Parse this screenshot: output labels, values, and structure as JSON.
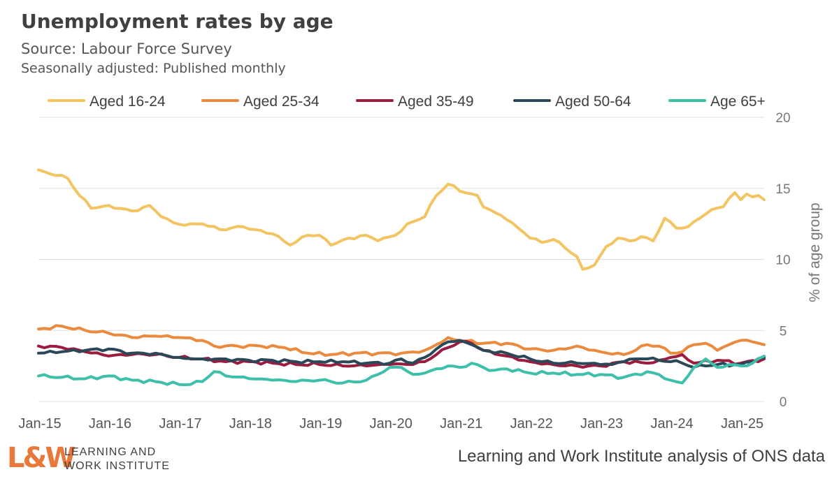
{
  "header": {
    "title": "Unemployment rates by age",
    "subtitle": "Source: Labour Force Survey",
    "subtitle2": "Seasonally adjusted: Published monthly"
  },
  "footer": {
    "logo_mark": "L&W",
    "logo_line1": "LEARNING AND",
    "logo_line2": "WORK INSTITUTE",
    "source_note": "Learning and Work Institute analysis of ONS data"
  },
  "colors": {
    "aged_16_24": "#f2c462",
    "aged_25_34": "#ea8a3e",
    "aged_35_49": "#9b1c3f",
    "aged_50_64": "#2a4858",
    "age_65_plus": "#3dbfaa",
    "gridline": "#dddddd",
    "axis_text": "#555555"
  },
  "chart_data": {
    "type": "line",
    "title": "Unemployment rates by age",
    "xlabel": "",
    "ylabel": "% of age group",
    "ylim": [
      0,
      20
    ],
    "yticks": [
      "0",
      "5",
      "10",
      "15",
      "20"
    ],
    "yaxis_position": "right",
    "grid": true,
    "legend_position": "top",
    "x_tick_labels": [
      "Jan-15",
      "Jan-16",
      "Jan-17",
      "Jan-18",
      "Jan-19",
      "Jan-20",
      "Jan-21",
      "Jan-22",
      "Jan-23",
      "Jan-24",
      "Jan-25"
    ],
    "x_start": "Jan-15",
    "frequency": "monthly",
    "n_points": 125,
    "series": [
      {
        "name": "Aged 16-24",
        "key": "aged_16_24",
        "anchors": [
          [
            0,
            16.3
          ],
          [
            3,
            15.9
          ],
          [
            5,
            15.7
          ],
          [
            7,
            14.5
          ],
          [
            9,
            13.6
          ],
          [
            12,
            13.8
          ],
          [
            16,
            13.4
          ],
          [
            19,
            13.8
          ],
          [
            21,
            13.0
          ],
          [
            23,
            12.6
          ],
          [
            25,
            12.4
          ],
          [
            28,
            12.5
          ],
          [
            31,
            12.1
          ],
          [
            35,
            12.3
          ],
          [
            37,
            12.1
          ],
          [
            40,
            11.8
          ],
          [
            43,
            11.0
          ],
          [
            46,
            11.7
          ],
          [
            48,
            11.7
          ],
          [
            50,
            11.0
          ],
          [
            53,
            11.5
          ],
          [
            56,
            11.7
          ],
          [
            58,
            11.3
          ],
          [
            61,
            11.7
          ],
          [
            63,
            12.5
          ],
          [
            66,
            13.0
          ],
          [
            68,
            14.5
          ],
          [
            70,
            15.3
          ],
          [
            72,
            14.8
          ],
          [
            75,
            14.5
          ],
          [
            76,
            13.7
          ],
          [
            78,
            13.3
          ],
          [
            80,
            12.8
          ],
          [
            82,
            12.2
          ],
          [
            84,
            11.5
          ],
          [
            86,
            11.2
          ],
          [
            88,
            11.4
          ],
          [
            90,
            10.8
          ],
          [
            92,
            10.2
          ],
          [
            93,
            9.3
          ],
          [
            95,
            9.6
          ],
          [
            97,
            10.9
          ],
          [
            99,
            11.5
          ],
          [
            101,
            11.3
          ],
          [
            103,
            11.6
          ],
          [
            105,
            11.3
          ],
          [
            107,
            12.9
          ],
          [
            109,
            12.2
          ],
          [
            111,
            12.3
          ],
          [
            113,
            12.9
          ],
          [
            115,
            13.5
          ],
          [
            117,
            13.7
          ],
          [
            118,
            14.3
          ],
          [
            119,
            14.7
          ],
          [
            120,
            14.2
          ],
          [
            121,
            14.6
          ],
          [
            122,
            14.4
          ],
          [
            123,
            14.5
          ],
          [
            124,
            14.2
          ]
        ]
      },
      {
        "name": "Aged 25-34",
        "key": "aged_25_34",
        "anchors": [
          [
            0,
            5.1
          ],
          [
            4,
            5.3
          ],
          [
            8,
            5.0
          ],
          [
            12,
            4.8
          ],
          [
            16,
            4.5
          ],
          [
            20,
            4.6
          ],
          [
            24,
            4.5
          ],
          [
            28,
            4.3
          ],
          [
            30,
            3.9
          ],
          [
            34,
            3.9
          ],
          [
            38,
            3.9
          ],
          [
            42,
            3.8
          ],
          [
            46,
            3.4
          ],
          [
            50,
            3.3
          ],
          [
            54,
            3.4
          ],
          [
            58,
            3.4
          ],
          [
            62,
            3.4
          ],
          [
            66,
            3.6
          ],
          [
            68,
            4.0
          ],
          [
            70,
            4.5
          ],
          [
            72,
            4.3
          ],
          [
            76,
            4.1
          ],
          [
            80,
            4.1
          ],
          [
            84,
            3.7
          ],
          [
            88,
            3.6
          ],
          [
            92,
            3.9
          ],
          [
            96,
            3.5
          ],
          [
            100,
            3.3
          ],
          [
            104,
            4.0
          ],
          [
            106,
            3.9
          ],
          [
            108,
            3.4
          ],
          [
            110,
            3.5
          ],
          [
            112,
            4.0
          ],
          [
            114,
            4.1
          ],
          [
            116,
            3.6
          ],
          [
            118,
            4.0
          ],
          [
            120,
            4.3
          ],
          [
            122,
            4.2
          ],
          [
            124,
            4.0
          ]
        ]
      },
      {
        "name": "Aged 35-49",
        "key": "aged_35_49",
        "anchors": [
          [
            0,
            3.9
          ],
          [
            4,
            3.8
          ],
          [
            8,
            3.5
          ],
          [
            12,
            3.2
          ],
          [
            16,
            3.3
          ],
          [
            20,
            3.3
          ],
          [
            24,
            3.1
          ],
          [
            28,
            3.0
          ],
          [
            32,
            2.8
          ],
          [
            36,
            2.8
          ],
          [
            40,
            2.7
          ],
          [
            44,
            2.6
          ],
          [
            48,
            2.6
          ],
          [
            52,
            2.5
          ],
          [
            56,
            2.5
          ],
          [
            60,
            2.6
          ],
          [
            64,
            2.6
          ],
          [
            66,
            2.8
          ],
          [
            68,
            3.3
          ],
          [
            70,
            3.8
          ],
          [
            72,
            4.2
          ],
          [
            74,
            4.1
          ],
          [
            76,
            3.6
          ],
          [
            80,
            3.2
          ],
          [
            84,
            2.8
          ],
          [
            88,
            2.6
          ],
          [
            92,
            2.5
          ],
          [
            96,
            2.5
          ],
          [
            100,
            2.8
          ],
          [
            104,
            2.7
          ],
          [
            106,
            2.9
          ],
          [
            108,
            3.1
          ],
          [
            110,
            3.3
          ],
          [
            112,
            2.7
          ],
          [
            116,
            2.9
          ],
          [
            120,
            2.7
          ],
          [
            124,
            3.0
          ]
        ]
      },
      {
        "name": "Aged 50-64",
        "key": "aged_50_64",
        "anchors": [
          [
            0,
            3.4
          ],
          [
            4,
            3.5
          ],
          [
            8,
            3.6
          ],
          [
            12,
            3.7
          ],
          [
            16,
            3.4
          ],
          [
            20,
            3.4
          ],
          [
            24,
            3.1
          ],
          [
            28,
            3.0
          ],
          [
            32,
            3.0
          ],
          [
            36,
            2.9
          ],
          [
            40,
            2.9
          ],
          [
            44,
            2.8
          ],
          [
            48,
            2.8
          ],
          [
            52,
            2.8
          ],
          [
            56,
            2.7
          ],
          [
            60,
            2.7
          ],
          [
            62,
            3.0
          ],
          [
            64,
            2.7
          ],
          [
            66,
            3.1
          ],
          [
            68,
            3.7
          ],
          [
            70,
            4.2
          ],
          [
            72,
            4.3
          ],
          [
            74,
            4.0
          ],
          [
            76,
            3.6
          ],
          [
            80,
            3.4
          ],
          [
            84,
            3.0
          ],
          [
            86,
            2.8
          ],
          [
            88,
            2.7
          ],
          [
            92,
            2.7
          ],
          [
            96,
            2.6
          ],
          [
            98,
            2.6
          ],
          [
            100,
            2.8
          ],
          [
            102,
            3.0
          ],
          [
            104,
            3.0
          ],
          [
            106,
            2.9
          ],
          [
            108,
            2.8
          ],
          [
            110,
            2.7
          ],
          [
            112,
            2.4
          ],
          [
            114,
            2.5
          ],
          [
            116,
            2.6
          ],
          [
            120,
            2.6
          ],
          [
            124,
            3.1
          ]
        ]
      },
      {
        "name": "Age 65+",
        "key": "age_65_plus",
        "anchors": [
          [
            0,
            1.8
          ],
          [
            4,
            1.7
          ],
          [
            8,
            1.6
          ],
          [
            12,
            1.8
          ],
          [
            16,
            1.5
          ],
          [
            20,
            1.4
          ],
          [
            24,
            1.2
          ],
          [
            26,
            1.2
          ],
          [
            28,
            1.4
          ],
          [
            30,
            2.1
          ],
          [
            32,
            1.8
          ],
          [
            36,
            1.6
          ],
          [
            40,
            1.5
          ],
          [
            44,
            1.4
          ],
          [
            48,
            1.5
          ],
          [
            52,
            1.3
          ],
          [
            56,
            1.5
          ],
          [
            58,
            1.9
          ],
          [
            60,
            2.4
          ],
          [
            62,
            2.4
          ],
          [
            64,
            1.9
          ],
          [
            66,
            2.0
          ],
          [
            68,
            2.3
          ],
          [
            70,
            2.5
          ],
          [
            72,
            2.4
          ],
          [
            74,
            2.7
          ],
          [
            76,
            2.4
          ],
          [
            78,
            2.2
          ],
          [
            80,
            2.3
          ],
          [
            84,
            2.0
          ],
          [
            88,
            2.0
          ],
          [
            92,
            1.9
          ],
          [
            96,
            1.9
          ],
          [
            100,
            1.7
          ],
          [
            104,
            2.1
          ],
          [
            106,
            1.9
          ],
          [
            108,
            1.5
          ],
          [
            110,
            1.3
          ],
          [
            112,
            2.4
          ],
          [
            114,
            3.0
          ],
          [
            116,
            2.4
          ],
          [
            118,
            2.6
          ],
          [
            120,
            2.5
          ],
          [
            122,
            2.7
          ],
          [
            124,
            3.2
          ]
        ]
      }
    ]
  }
}
